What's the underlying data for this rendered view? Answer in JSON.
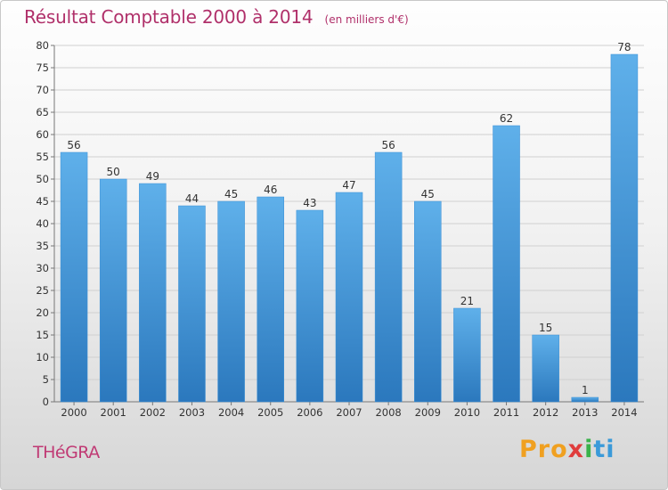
{
  "chart_data": {
    "type": "bar",
    "title": "Résultat Comptable 2000 à 2014",
    "subtitle": "(en milliers d'€)",
    "categories": [
      "2000",
      "2001",
      "2002",
      "2003",
      "2004",
      "2005",
      "2006",
      "2007",
      "2008",
      "2009",
      "2010",
      "2011",
      "2012",
      "2013",
      "2014"
    ],
    "values": [
      56,
      50,
      49,
      44,
      45,
      46,
      43,
      47,
      56,
      45,
      21,
      62,
      15,
      1,
      78
    ],
    "ylim": [
      0,
      80
    ],
    "yticks": [
      0,
      5,
      10,
      15,
      20,
      25,
      30,
      35,
      40,
      45,
      50,
      55,
      60,
      65,
      70,
      75,
      80
    ],
    "grid": true,
    "bar_color": "#3a8fd6",
    "bar_color_light": "#5fb0ea",
    "bar_color_dark": "#2b78bd"
  },
  "footer": {
    "commune": "THéGRA",
    "logo": [
      "Pro",
      "x",
      "i",
      "ti"
    ]
  }
}
